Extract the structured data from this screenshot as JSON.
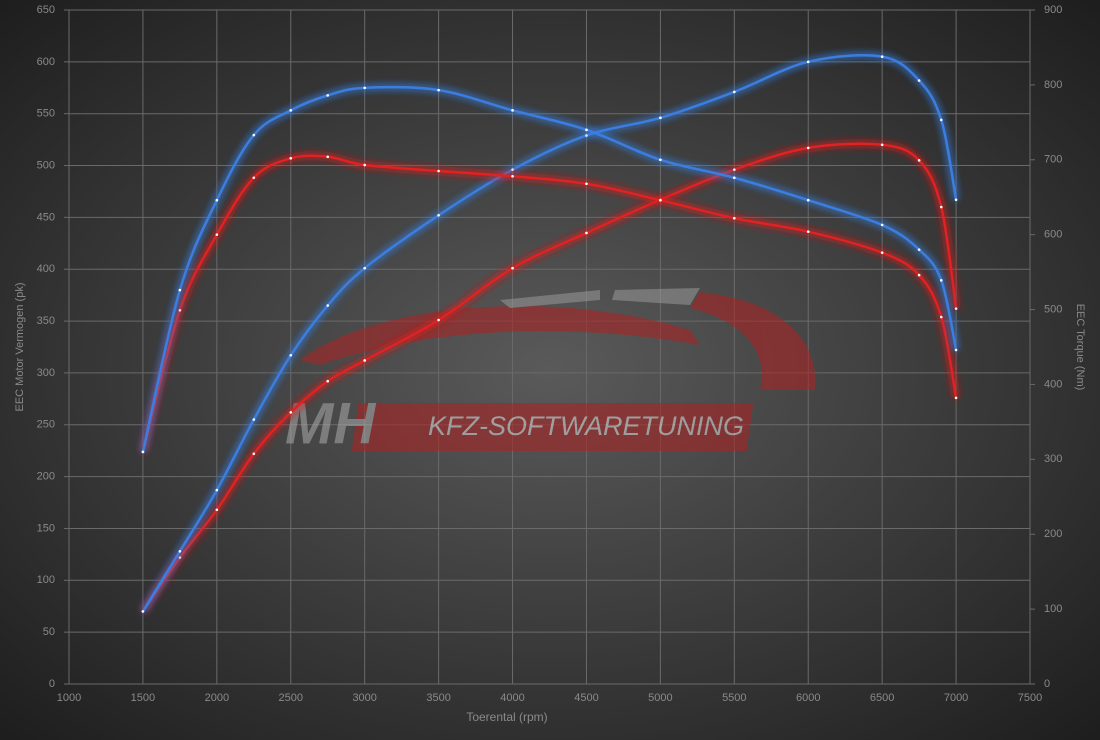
{
  "chart_data": {
    "type": "line",
    "x": [
      1500,
      1750,
      2000,
      2250,
      2500,
      2750,
      3000,
      3500,
      4000,
      4500,
      5000,
      5500,
      6000,
      6500,
      6750,
      6900,
      7000
    ],
    "series": [
      {
        "color": "#e02020",
        "axis": "y",
        "values": [
          70,
          122,
          168,
          222,
          262,
          292,
          312,
          351,
          401,
          435,
          467,
          496,
          517,
          520,
          505,
          460,
          362
        ]
      },
      {
        "color": "#3a7ee0",
        "axis": "y",
        "values": [
          70,
          128,
          187,
          255,
          317,
          365,
          401,
          452,
          496,
          529,
          546,
          571,
          600,
          605,
          582,
          544,
          467
        ]
      },
      {
        "color": "#e02020",
        "axis": "y2",
        "values": [
          310,
          499,
          600,
          676,
          702,
          704,
          693,
          685,
          678,
          668,
          646,
          622,
          604,
          576,
          546,
          490,
          382
        ]
      },
      {
        "color": "#3a7ee0",
        "axis": "y2",
        "values": [
          310,
          526,
          646,
          733,
          766,
          786,
          796,
          793,
          766,
          740,
          700,
          676,
          646,
          613,
          580,
          539,
          446
        ]
      }
    ],
    "xlabel": "Toerental (rpm)",
    "ylabel": "EEC Motor Vermogen (pk)",
    "y2label": "EEC Torque (Nm)",
    "xlim": [
      1000,
      7500
    ],
    "xticks": [
      1000,
      1500,
      2000,
      2500,
      3000,
      3500,
      4000,
      4500,
      5000,
      5500,
      6000,
      6500,
      7000,
      7500
    ],
    "ylim": [
      0,
      650
    ],
    "yticks": [
      0,
      50,
      100,
      150,
      200,
      250,
      300,
      350,
      400,
      450,
      500,
      550,
      600,
      650
    ],
    "y2lim": [
      0,
      900
    ],
    "y2ticks": [
      0,
      100,
      200,
      300,
      400,
      500,
      600,
      700,
      800,
      900
    ],
    "grid": true,
    "watermark": {
      "logo": "MH",
      "text": "KFZ-SOFTWARETUNING"
    }
  }
}
